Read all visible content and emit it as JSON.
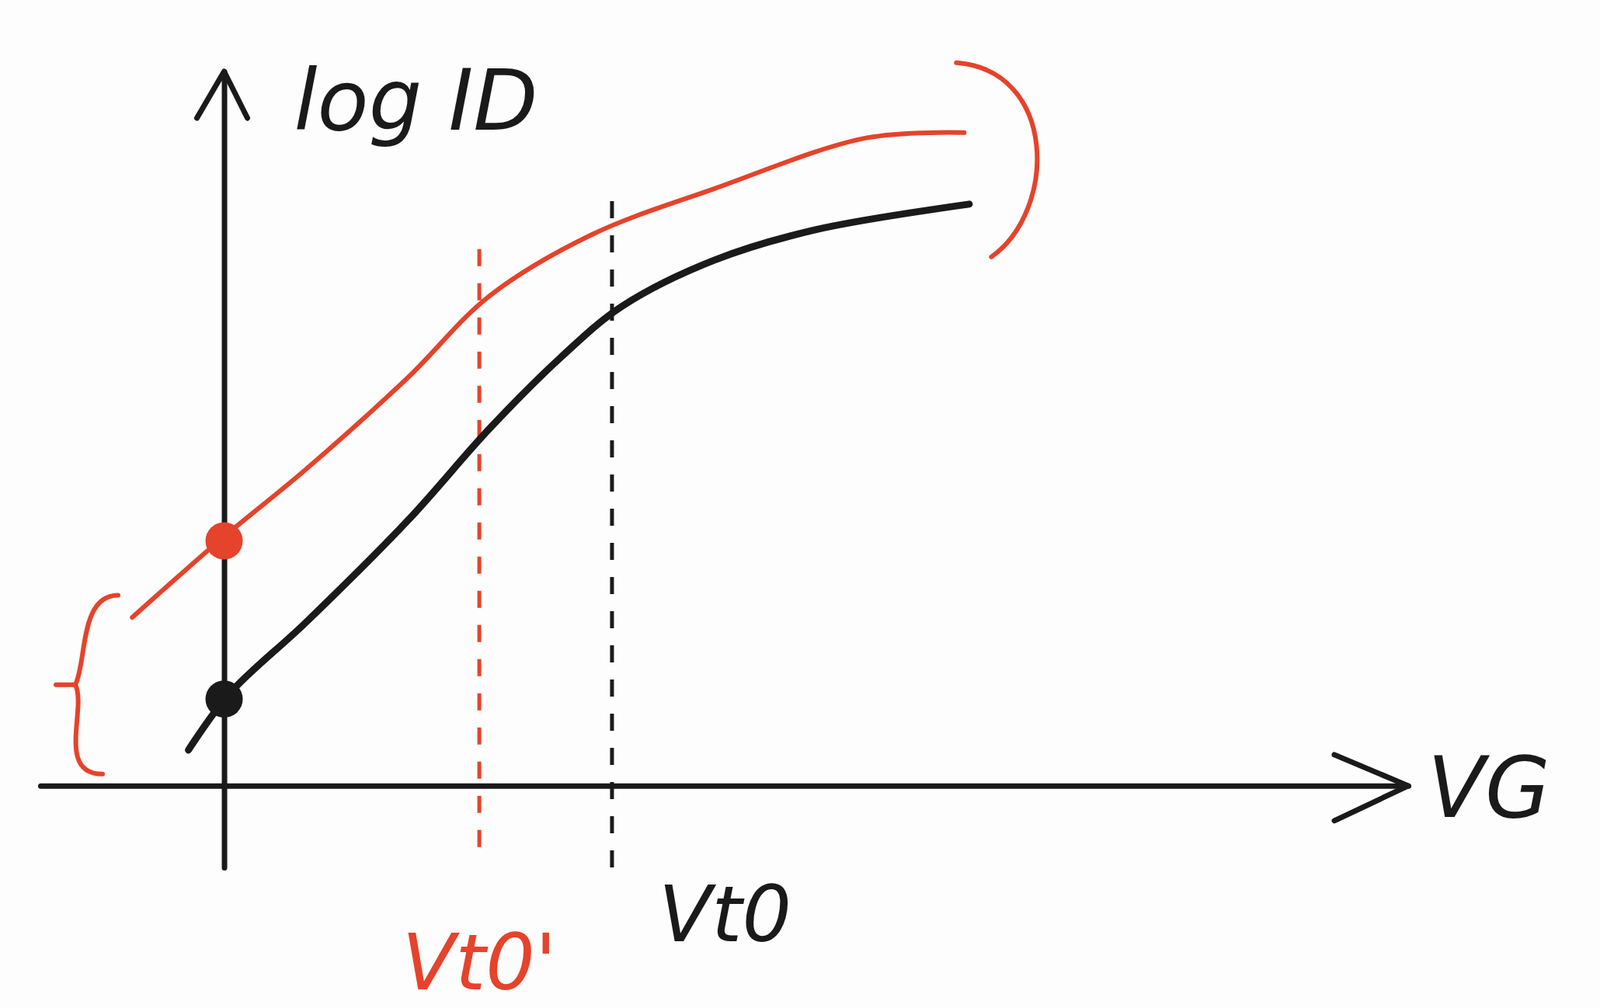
{
  "chart_data": {
    "type": "line",
    "x_label": "VG",
    "y_label": "log ID",
    "xlim": [
      -1.8,
      11.6
    ],
    "ylim": [
      -0.8,
      7.0
    ],
    "xticks": [],
    "yticks": [],
    "tick_labels": false,
    "grid": false,
    "series": [
      {
        "color": "#1a1a1a",
        "line_style": "solid",
        "x": [
          -0.35,
          0.05,
          0.8,
          1.8,
          2.6,
          3.3,
          3.9,
          4.8,
          5.8,
          7.3
        ],
        "values": [
          0.35,
          0.9,
          1.6,
          2.6,
          3.5,
          4.2,
          4.7,
          5.15,
          5.45,
          5.7
        ]
      },
      {
        "color": "#e5432b",
        "line_style": "solid",
        "x": [
          -0.9,
          -0.05,
          0.8,
          1.8,
          2.6,
          3.6,
          4.8,
          6.3,
          7.25
        ],
        "values": [
          1.65,
          2.4,
          3.1,
          4.0,
          4.8,
          5.4,
          5.85,
          6.35,
          6.4
        ]
      }
    ],
    "points": [
      {
        "x": 0,
        "y": 0.85,
        "color": "#1a1a1a"
      },
      {
        "x": 0,
        "y": 2.4,
        "color": "#e5432b"
      }
    ],
    "annotations": [
      {
        "text": "Vt0",
        "x": 3.8,
        "y0": -0.8,
        "y1": 5.8,
        "color": "#1a1a1a",
        "line_style": "dashed"
      },
      {
        "text": "Vt0'",
        "x": 2.5,
        "y0": -0.6,
        "y1": 5.4,
        "color": "#e5432b",
        "line_style": "dashed"
      }
    ]
  }
}
